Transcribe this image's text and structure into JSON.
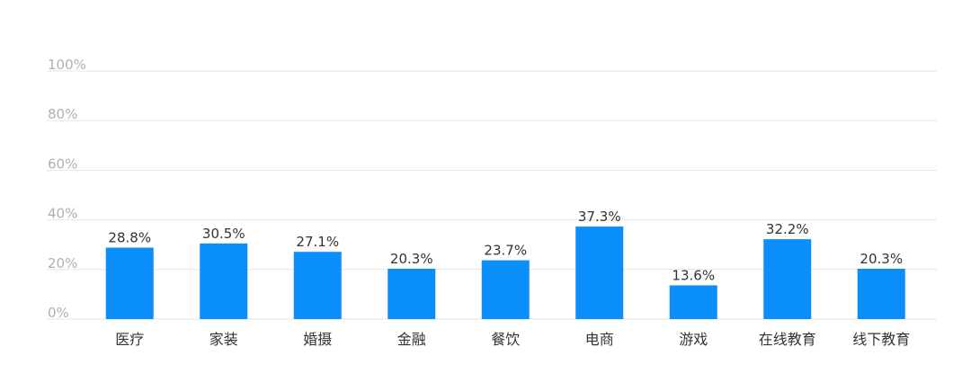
{
  "chart_data": {
    "type": "bar",
    "title": "",
    "xlabel": "",
    "ylabel": "",
    "categories": [
      "医疗",
      "家装",
      "婚摄",
      "金融",
      "餐饮",
      "电商",
      "游戏",
      "在线教育",
      "线下教育"
    ],
    "values": [
      28.8,
      30.5,
      27.1,
      20.3,
      23.7,
      37.3,
      13.6,
      32.2,
      20.3
    ],
    "value_labels": [
      "28.8%",
      "30.5%",
      "27.1%",
      "20.3%",
      "23.7%",
      "37.3%",
      "13.6%",
      "32.2%",
      "20.3%"
    ],
    "ylim": [
      0,
      100
    ],
    "yticks": [
      0,
      20,
      40,
      60,
      80,
      100
    ],
    "ytick_labels": [
      "0%",
      "20%",
      "40%",
      "60%",
      "80%",
      "100%"
    ],
    "grid": true,
    "bar_color": "#0a8ffa",
    "grid_color": "#e6e6e6"
  }
}
